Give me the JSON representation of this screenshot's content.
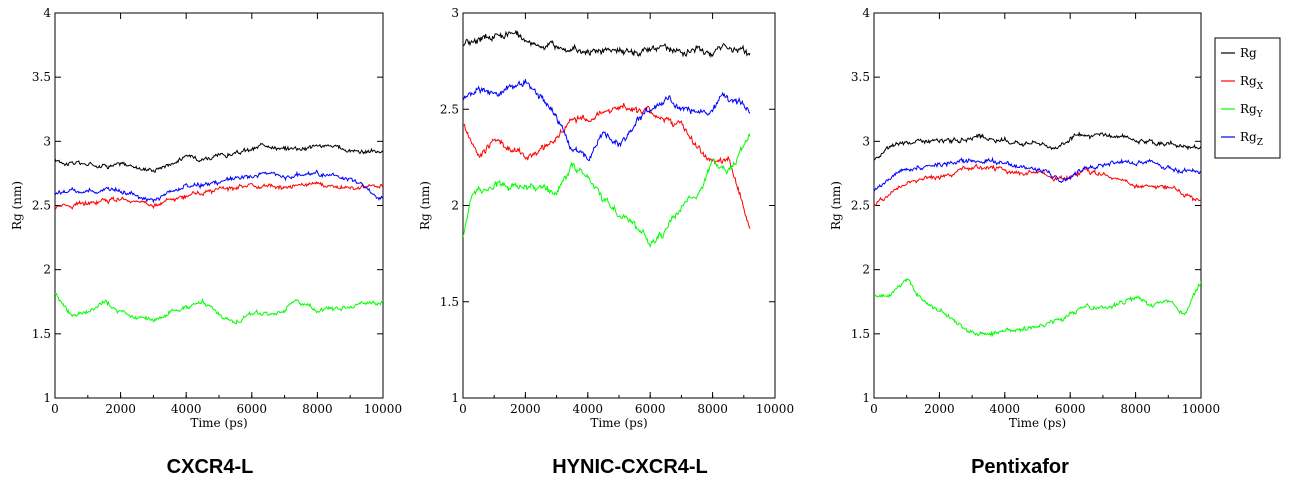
{
  "chart_data": [
    {
      "type": "line",
      "caption": "CXCR4-L",
      "xlabel": "Time (ps)",
      "ylabel": "Rg (nm)",
      "xlim": [
        0,
        10000
      ],
      "ylim": [
        1,
        4
      ],
      "xticks": [
        "0",
        "2000",
        "4000",
        "6000",
        "8000",
        "10000"
      ],
      "yticks": [
        "1",
        "1.5",
        "2",
        "2.5",
        "3",
        "3.5",
        "4"
      ],
      "series": [
        {
          "key": "rg",
          "color": "#000000",
          "x": [
            0,
            1000,
            2000,
            3000,
            4000,
            5000,
            6000,
            6500,
            7000,
            8000,
            9000,
            10000
          ],
          "y": [
            2.85,
            2.82,
            2.82,
            2.78,
            2.88,
            2.88,
            2.93,
            2.98,
            2.94,
            2.97,
            2.93,
            2.92
          ]
        },
        {
          "key": "rgx",
          "color": "#ff0000",
          "x": [
            0,
            1000,
            2000,
            3000,
            4000,
            5000,
            6000,
            7000,
            8000,
            9000,
            10000
          ],
          "y": [
            2.48,
            2.52,
            2.56,
            2.5,
            2.58,
            2.62,
            2.66,
            2.64,
            2.67,
            2.63,
            2.65
          ]
        },
        {
          "key": "rgy",
          "color": "#00ff00",
          "x": [
            0,
            500,
            1000,
            1500,
            2000,
            3000,
            4000,
            4500,
            5000,
            5500,
            6000,
            7000,
            7300,
            8000,
            9000,
            10000
          ],
          "y": [
            1.8,
            1.65,
            1.65,
            1.75,
            1.65,
            1.6,
            1.72,
            1.75,
            1.65,
            1.6,
            1.65,
            1.68,
            1.76,
            1.68,
            1.72,
            1.76
          ]
        },
        {
          "key": "rgz",
          "color": "#0000ff",
          "x": [
            0,
            1000,
            2000,
            3000,
            4000,
            5000,
            6000,
            6500,
            7000,
            8000,
            9000,
            10000
          ],
          "y": [
            2.6,
            2.62,
            2.62,
            2.55,
            2.65,
            2.68,
            2.72,
            2.75,
            2.72,
            2.75,
            2.7,
            2.55
          ]
        }
      ]
    },
    {
      "type": "line",
      "caption": "HYNIC-CXCR4-L",
      "xlabel": "Time (ps)",
      "ylabel": "Rg (nm)",
      "xlim": [
        0,
        10000
      ],
      "ylim": [
        1,
        3
      ],
      "xticks": [
        "0",
        "2000",
        "4000",
        "6000",
        "8000",
        "10000"
      ],
      "yticks": [
        "1",
        "1.5",
        "2",
        "2.5",
        "3"
      ],
      "series": [
        {
          "key": "rg",
          "color": "#000000",
          "x": [
            0,
            1000,
            1500,
            2000,
            3000,
            4000,
            5000,
            6000,
            7000,
            8000,
            8300,
            9000,
            9200
          ],
          "y": [
            2.84,
            2.88,
            2.9,
            2.86,
            2.82,
            2.8,
            2.8,
            2.82,
            2.8,
            2.8,
            2.85,
            2.8,
            2.78
          ]
        },
        {
          "key": "rgx",
          "color": "#ff0000",
          "x": [
            0,
            500,
            1000,
            2000,
            3000,
            3500,
            4000,
            5000,
            6000,
            7000,
            7500,
            8000,
            8500,
            9000,
            9200
          ],
          "y": [
            2.42,
            2.25,
            2.35,
            2.25,
            2.35,
            2.45,
            2.45,
            2.52,
            2.48,
            2.42,
            2.3,
            2.2,
            2.25,
            2.0,
            1.88
          ]
        },
        {
          "key": "rgy",
          "color": "#00ff00",
          "x": [
            0,
            300,
            1000,
            2000,
            3000,
            3500,
            4000,
            5000,
            5500,
            6000,
            6500,
            7000,
            7500,
            8000,
            8500,
            9000,
            9200
          ],
          "y": [
            1.85,
            2.05,
            2.12,
            2.1,
            2.05,
            2.2,
            2.15,
            1.95,
            1.9,
            1.8,
            1.88,
            2.0,
            2.05,
            2.25,
            2.2,
            2.3,
            2.35
          ]
        },
        {
          "key": "rgz",
          "color": "#0000ff",
          "x": [
            0,
            500,
            1000,
            2000,
            2500,
            3000,
            3500,
            4000,
            4500,
            5000,
            5500,
            6000,
            6500,
            7000,
            8000,
            8300,
            9000,
            9200
          ],
          "y": [
            2.55,
            2.62,
            2.58,
            2.64,
            2.55,
            2.45,
            2.3,
            2.25,
            2.38,
            2.32,
            2.42,
            2.5,
            2.55,
            2.5,
            2.5,
            2.58,
            2.52,
            2.5
          ]
        }
      ]
    },
    {
      "type": "line",
      "caption": "Pentixafor",
      "xlabel": "Time (ps)",
      "ylabel": "Rg (nm)",
      "xlim": [
        0,
        10000
      ],
      "ylim": [
        1,
        4
      ],
      "xticks": [
        "0",
        "2000",
        "4000",
        "6000",
        "8000",
        "10000"
      ],
      "yticks": [
        "1",
        "1.5",
        "2",
        "2.5",
        "3",
        "3.5",
        "4"
      ],
      "series": [
        {
          "key": "rg",
          "color": "#000000",
          "x": [
            0,
            500,
            1000,
            2000,
            3000,
            4000,
            5000,
            5500,
            6000,
            7000,
            8000,
            9000,
            10000
          ],
          "y": [
            2.85,
            2.95,
            3.0,
            3.0,
            3.02,
            3.0,
            3.0,
            2.95,
            3.02,
            3.05,
            3.02,
            2.98,
            2.96
          ]
        },
        {
          "key": "rgx",
          "color": "#ff0000",
          "x": [
            0,
            500,
            1000,
            2000,
            3000,
            4000,
            5000,
            5800,
            6500,
            7000,
            8000,
            9000,
            10000
          ],
          "y": [
            2.48,
            2.6,
            2.68,
            2.72,
            2.8,
            2.78,
            2.75,
            2.7,
            2.78,
            2.75,
            2.65,
            2.65,
            2.52
          ]
        },
        {
          "key": "rgy",
          "color": "#00ff00",
          "x": [
            0,
            500,
            1000,
            1500,
            2000,
            2500,
            3000,
            3500,
            4000,
            5000,
            6000,
            6500,
            7000,
            8000,
            8500,
            9000,
            9500,
            10000
          ],
          "y": [
            1.8,
            1.82,
            1.92,
            1.75,
            1.68,
            1.58,
            1.52,
            1.5,
            1.52,
            1.55,
            1.65,
            1.72,
            1.68,
            1.78,
            1.72,
            1.75,
            1.65,
            1.9
          ]
        },
        {
          "key": "rgz",
          "color": "#0000ff",
          "x": [
            0,
            500,
            1000,
            2000,
            3000,
            4000,
            5000,
            5800,
            6500,
            7000,
            8000,
            9000,
            10000
          ],
          "y": [
            2.6,
            2.72,
            2.78,
            2.82,
            2.85,
            2.82,
            2.78,
            2.68,
            2.8,
            2.82,
            2.85,
            2.8,
            2.75
          ]
        }
      ]
    }
  ],
  "legend": {
    "placement": "top-right",
    "entries": [
      {
        "key": "rg",
        "base": "Rg",
        "sub": "",
        "color": "#000000"
      },
      {
        "key": "rgx",
        "base": "Rg",
        "sub": "X",
        "color": "#ff0000"
      },
      {
        "key": "rgy",
        "base": "Rg",
        "sub": "Y",
        "color": "#00ff00"
      },
      {
        "key": "rgz",
        "base": "Rg",
        "sub": "Z",
        "color": "#0000ff"
      }
    ]
  }
}
